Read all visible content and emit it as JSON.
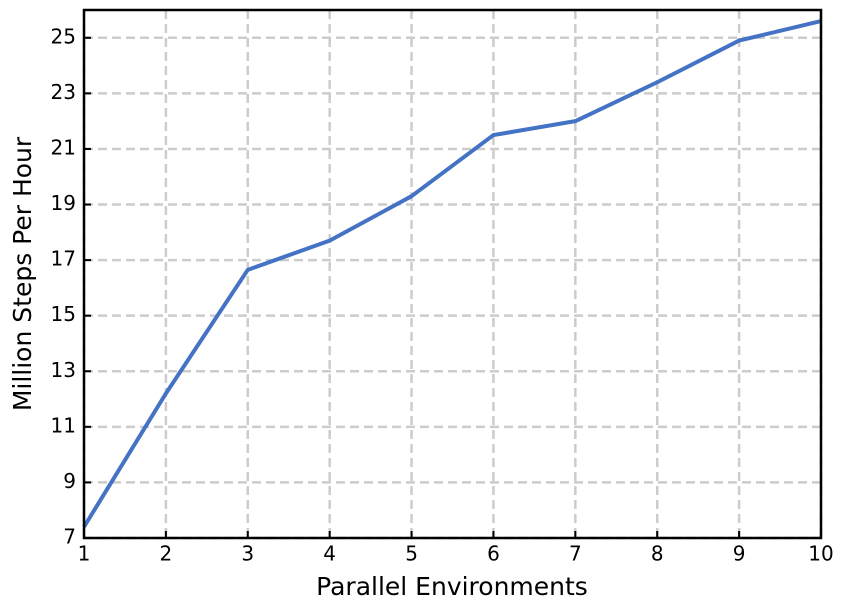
{
  "chart_data": {
    "type": "line",
    "xlabel": "Parallel Environments",
    "ylabel": "Million Steps Per Hour",
    "x": [
      1,
      2,
      3,
      4,
      5,
      6,
      7,
      8,
      9,
      10
    ],
    "series": [
      {
        "color": "#4472c4",
        "values": [
          7.4,
          12.2,
          16.65,
          17.7,
          19.3,
          21.5,
          22.0,
          23.4,
          24.9,
          25.6
        ]
      }
    ],
    "xlim": [
      1,
      10
    ],
    "ylim": [
      7,
      26
    ],
    "xticks": [
      1,
      2,
      3,
      4,
      5,
      6,
      7,
      8,
      9,
      10
    ],
    "yticks": [
      7,
      9,
      11,
      13,
      15,
      17,
      19,
      21,
      23,
      25
    ],
    "grid": true
  }
}
